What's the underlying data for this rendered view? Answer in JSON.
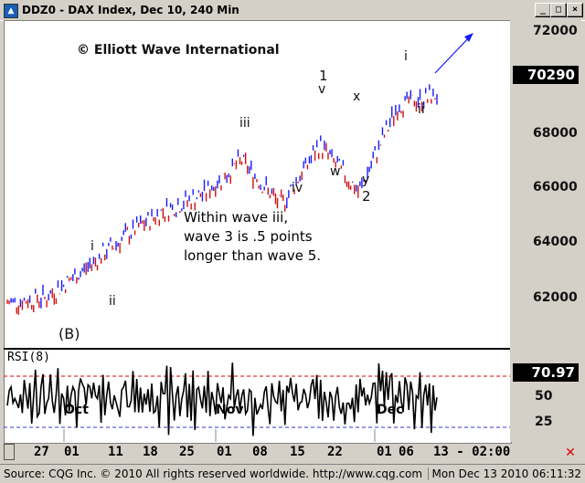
{
  "window": {
    "title": "DDZ0 - DAX Index, Dec 10, 240 Min",
    "icon": "chart-app-icon",
    "controls": [
      "_",
      "□",
      "×"
    ]
  },
  "chart": {
    "copyright": "© Elliott Wave International",
    "annotation_lines": [
      "Within wave iii,",
      "wave 3 is .5 points",
      "longer than wave 5."
    ],
    "last_price": "70290",
    "rsi_title": "RSI(8)",
    "rsi_value": "70.97",
    "y_ticks": [
      "72000",
      "70000",
      "68000",
      "66000",
      "64000",
      "62000"
    ],
    "rsi_ticks": [
      "75",
      "50",
      "25"
    ],
    "months": [
      "Oct",
      "Nov",
      "Dec"
    ],
    "wave_labels": {
      "B": "(B)",
      "i1": "i",
      "ii1": "ii",
      "iii": "iii",
      "iv": "iv",
      "one": "1",
      "v": "v",
      "w": "w",
      "x": "x",
      "y": "y",
      "two": "2",
      "i2": "i",
      "ii2": "ii"
    },
    "up_color": "#1a1aff",
    "down_color": "#d01010"
  },
  "dates": [
    "27",
    "01",
    "11",
    "18",
    "25",
    "01",
    "08",
    "15",
    "22",
    "01",
    "06",
    "13 - 02:00"
  ],
  "status": {
    "left": "Source: CQG Inc. © 2010 All rights reserved worldwide. http://www.cqg.com",
    "right": "Mon Dec 13 2010 06:11:32"
  },
  "chart_data": {
    "type": "line",
    "title": "DAX Index, Dec 10, 240 Min",
    "ylim": [
      60800,
      73000
    ],
    "series": [
      {
        "name": "DDZ0",
        "x": [
          "27",
          "01",
          "11",
          "18",
          "25",
          "01",
          "08",
          "15",
          "22",
          "01",
          "06",
          "13"
        ],
        "values": [
          62400,
          62600,
          63700,
          64900,
          65900,
          66500,
          67800,
          66100,
          68400,
          66600,
          69900,
          70290
        ]
      }
    ],
    "rsi": {
      "title": "RSI(8)",
      "value": 70.97,
      "overbought": 70,
      "oversold": 30,
      "ticks": [
        75,
        50,
        25
      ]
    }
  }
}
